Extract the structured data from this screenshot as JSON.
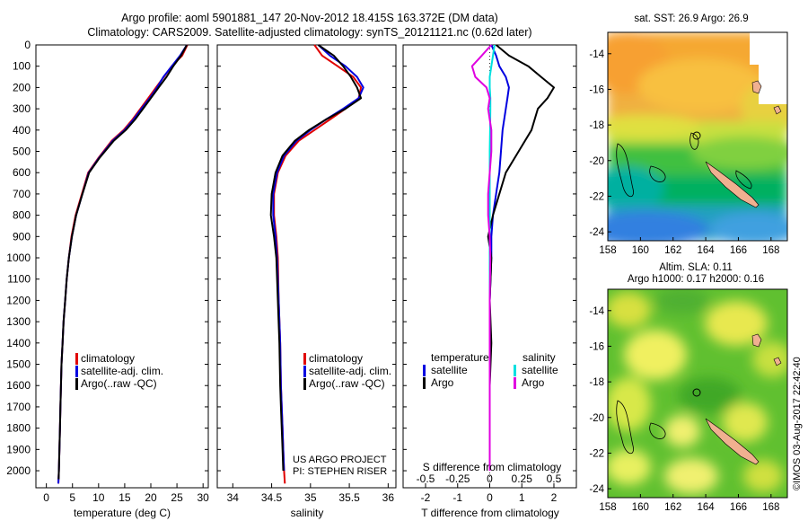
{
  "title": {
    "line1": "Argo profile: aoml 5901881_147 20-Nov-2012 18.415S 163.372E (DM data)",
    "line2": "Climatology: CARS2009. Satellite-adjusted climatology: synTS_20121121.nc (0.62d later)"
  },
  "credits": {
    "project": "US ARGO PROJECT",
    "pi": "PI: STEPHEN RISER",
    "imos": "©IMOS 03-Aug-2017 22:42:40"
  },
  "colors": {
    "climatology": "#e00000",
    "satellite": "#0000e0",
    "argo": "#000000",
    "salinity_satellite": "#00e0e0",
    "salinity_argo": "#e000e0"
  },
  "chart_data": [
    {
      "type": "line",
      "id": "temperature",
      "xlabel": "temperature (deg C)",
      "xlim": [
        -2,
        31
      ],
      "ylim": [
        2080,
        0
      ],
      "xticks": [
        0,
        5,
        10,
        15,
        20,
        25,
        30
      ],
      "yticks": [
        0,
        100,
        200,
        300,
        400,
        500,
        600,
        700,
        800,
        900,
        1000,
        1100,
        1200,
        1300,
        1400,
        1500,
        1600,
        1700,
        1800,
        1900,
        2000
      ],
      "legend": [
        "climatology",
        "satellite-adj. clim.",
        "Argo(..raw -QC)"
      ],
      "series": [
        {
          "name": "climatology",
          "color": "#e00000",
          "x": [
            27.0,
            26.0,
            24.0,
            22.5,
            21.0,
            19.5,
            18.0,
            16.5,
            14.8,
            12.5,
            10.0,
            8.0,
            6.8,
            5.6,
            4.8,
            4.3,
            3.9,
            3.6,
            3.3,
            3.1,
            2.9,
            2.8,
            2.7,
            2.6,
            2.5,
            2.4,
            2.3
          ],
          "y": [
            0,
            50,
            100,
            150,
            200,
            250,
            300,
            350,
            400,
            450,
            530,
            600,
            700,
            800,
            900,
            1000,
            1100,
            1200,
            1300,
            1400,
            1500,
            1600,
            1700,
            1800,
            1900,
            2000,
            2060
          ]
        },
        {
          "name": "satellite-adj. clim.",
          "color": "#0000e0",
          "x": [
            26.9,
            25.6,
            24.0,
            22.4,
            21.2,
            19.8,
            18.2,
            16.7,
            15.0,
            12.7,
            10.1,
            8.1,
            6.9,
            5.7,
            4.9,
            4.3,
            3.9,
            3.6,
            3.3,
            3.1,
            2.9,
            2.8,
            2.7,
            2.6,
            2.5,
            2.4,
            2.3
          ],
          "y": [
            0,
            50,
            100,
            150,
            200,
            250,
            300,
            350,
            400,
            450,
            530,
            600,
            700,
            800,
            900,
            1000,
            1100,
            1200,
            1300,
            1400,
            1500,
            1600,
            1700,
            1800,
            1900,
            2000,
            2060
          ]
        },
        {
          "name": "Argo(..raw -QC)",
          "color": "#000000",
          "x": [
            26.9,
            25.8,
            24.3,
            23.0,
            21.5,
            20.0,
            18.5,
            17.0,
            15.2,
            12.9,
            10.2,
            8.2,
            6.9,
            5.7,
            4.9,
            4.3,
            3.9,
            3.6,
            3.3,
            3.1,
            2.9,
            2.8,
            2.7,
            2.6,
            2.5,
            2.4,
            2.35
          ],
          "y": [
            0,
            50,
            100,
            150,
            200,
            250,
            300,
            350,
            400,
            450,
            530,
            600,
            700,
            800,
            900,
            1000,
            1100,
            1200,
            1300,
            1400,
            1500,
            1600,
            1700,
            1800,
            1900,
            2000,
            2040
          ]
        }
      ]
    },
    {
      "type": "line",
      "id": "salinity",
      "xlabel": "salinity",
      "xlim": [
        33.8,
        36.1
      ],
      "ylim": [
        2080,
        0
      ],
      "xticks": [
        34,
        34.5,
        35,
        35.5,
        36
      ],
      "xticklabels": [
        "34",
        "34.5",
        "35",
        "35.5",
        "36"
      ],
      "legend": [
        "climatology",
        "satellite-adj. clim.",
        "Argo(..raw -QC)"
      ],
      "series": [
        {
          "name": "climatology",
          "color": "#e00000",
          "x": [
            35.05,
            35.15,
            35.35,
            35.55,
            35.65,
            35.62,
            35.45,
            35.25,
            35.05,
            34.85,
            34.68,
            34.58,
            34.53,
            34.53,
            34.56,
            34.58,
            34.59,
            34.61,
            34.62,
            34.63,
            34.64,
            34.65,
            34.66,
            34.67
          ],
          "y": [
            0,
            50,
            100,
            150,
            200,
            250,
            300,
            350,
            400,
            450,
            520,
            600,
            700,
            800,
            900,
            1000,
            1200,
            1400,
            1600,
            1700,
            1800,
            1900,
            2000,
            2060
          ]
        },
        {
          "name": "satellite-adj. clim.",
          "color": "#0000e0",
          "x": [
            35.1,
            35.25,
            35.45,
            35.6,
            35.68,
            35.62,
            35.42,
            35.2,
            35.0,
            34.82,
            34.66,
            34.57,
            34.52,
            34.52,
            34.55,
            34.57,
            34.59,
            34.61,
            34.62,
            34.63,
            34.64,
            34.65,
            34.66
          ],
          "y": [
            0,
            50,
            100,
            150,
            200,
            250,
            300,
            350,
            400,
            450,
            520,
            600,
            700,
            800,
            900,
            1000,
            1200,
            1400,
            1600,
            1700,
            1800,
            1900,
            2000
          ]
        },
        {
          "name": "Argo(..raw -QC)",
          "color": "#000000",
          "x": [
            35.1,
            35.3,
            35.42,
            35.52,
            35.6,
            35.65,
            35.45,
            35.2,
            34.98,
            34.8,
            34.64,
            34.55,
            34.5,
            34.49,
            34.53,
            34.56,
            34.58,
            34.6,
            34.61,
            34.62,
            34.63,
            34.64,
            34.65
          ],
          "y": [
            0,
            50,
            100,
            150,
            200,
            250,
            300,
            350,
            400,
            450,
            520,
            600,
            700,
            800,
            900,
            1000,
            1200,
            1400,
            1600,
            1700,
            1800,
            1900,
            2000
          ]
        }
      ]
    },
    {
      "type": "line",
      "id": "difference",
      "xlabel": "T difference from climatology",
      "xlabel_top": "S difference from climatology",
      "xlim": [
        -2.7,
        2.7
      ],
      "ylim": [
        2080,
        0
      ],
      "xticks": [
        -2,
        -1,
        0,
        1,
        2
      ],
      "xticks_top": [
        -0.5,
        -0.25,
        0,
        0.25,
        0.5
      ],
      "legend_temperature": {
        "title": "temperature",
        "items": [
          "satellite",
          "Argo"
        ]
      },
      "legend_salinity": {
        "title": "salinity",
        "items": [
          "satellite",
          "Argo"
        ]
      },
      "series": [
        {
          "name": "temperature satellite",
          "color": "#0000e0",
          "x": [
            0.05,
            0.2,
            0.3,
            0.5,
            0.6,
            0.55,
            0.5,
            0.4,
            0.35,
            0.3,
            0.2,
            0.1,
            0.05,
            0.05,
            0.0,
            0.0,
            0.0,
            0.0,
            0.0
          ],
          "y": [
            0,
            50,
            100,
            150,
            200,
            250,
            300,
            400,
            500,
            600,
            700,
            800,
            900,
            1000,
            1200,
            1400,
            1600,
            1800,
            2000
          ]
        },
        {
          "name": "temperature Argo",
          "color": "#000000",
          "x": [
            0.2,
            0.6,
            1.2,
            1.6,
            2.0,
            1.8,
            1.5,
            1.3,
            0.9,
            0.5,
            0.3,
            0.1,
            -0.05,
            0.05,
            0.0,
            0.05,
            0.0,
            0.0,
            0.0
          ],
          "y": [
            0,
            50,
            100,
            150,
            200,
            250,
            300,
            400,
            500,
            600,
            700,
            800,
            900,
            1000,
            1200,
            1400,
            1600,
            1800,
            2000
          ]
        },
        {
          "name": "salinity satellite",
          "color": "#00e0e0",
          "x": [
            0.15,
            0.1,
            0.05,
            0.0,
            0.0,
            0.02,
            0.02,
            0.01,
            0.0,
            0.0,
            0.0,
            0.0,
            0.0,
            0.0,
            0.0,
            0.0,
            0.0,
            0.0,
            0.0
          ],
          "y": [
            0,
            50,
            100,
            150,
            200,
            250,
            300,
            400,
            500,
            600,
            700,
            800,
            900,
            1000,
            1200,
            1400,
            1600,
            1800,
            2000
          ]
        },
        {
          "name": "salinity Argo",
          "color": "#e000e0",
          "x": [
            0.05,
            -0.25,
            -0.55,
            -0.45,
            -0.1,
            0.0,
            -0.05,
            0.05,
            0.05,
            0.0,
            -0.05,
            -0.05,
            0.0,
            0.02,
            0.0,
            0.0,
            0.0,
            0.0,
            0.0
          ],
          "y": [
            0,
            50,
            100,
            150,
            200,
            250,
            300,
            400,
            500,
            600,
            700,
            800,
            900,
            1000,
            1200,
            1400,
            1600,
            1800,
            2000
          ]
        }
      ]
    },
    {
      "type": "heatmap",
      "id": "sst_map",
      "title": "sat. SST: 26.9  Argo: 26.9",
      "xlim": [
        158,
        169
      ],
      "ylim": [
        -24.5,
        -12.8
      ],
      "xticks": [
        158,
        160,
        162,
        164,
        166,
        168
      ],
      "yticks": [
        -14,
        -16,
        -18,
        -20,
        -22,
        -24
      ],
      "float_position": {
        "lon": 163.372,
        "lat": -18.415
      }
    },
    {
      "type": "heatmap",
      "id": "sla_map",
      "title_line1": "Altim. SLA: 0.11",
      "title_line2": "Argo h1000: 0.17 h2000: 0.16",
      "xlim": [
        158,
        169
      ],
      "ylim": [
        -24.5,
        -12.8
      ],
      "xticks": [
        158,
        160,
        162,
        164,
        166,
        168
      ],
      "yticks": [
        -14,
        -16,
        -18,
        -20,
        -22,
        -24
      ],
      "float_position": {
        "lon": 163.372,
        "lat": -18.415
      }
    }
  ]
}
